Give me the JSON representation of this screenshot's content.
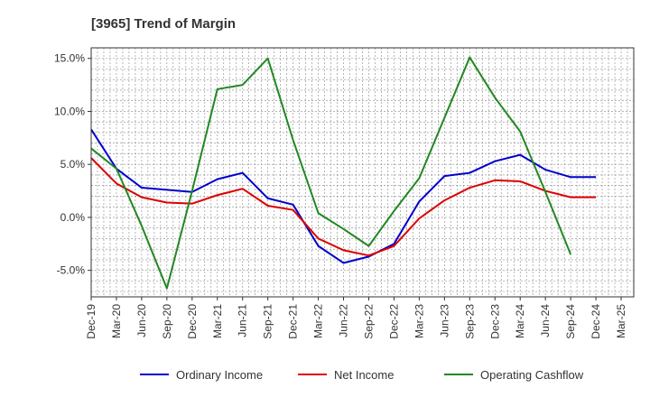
{
  "chart_data": {
    "type": "line",
    "title": "[3965]  Trend of Margin",
    "xlabel": "",
    "ylabel": "",
    "categories": [
      "Dec-19",
      "Mar-20",
      "Jun-20",
      "Sep-20",
      "Dec-20",
      "Mar-21",
      "Jun-21",
      "Sep-21",
      "Dec-21",
      "Mar-22",
      "Jun-22",
      "Sep-22",
      "Dec-22",
      "Mar-23",
      "Jun-23",
      "Sep-23",
      "Dec-23",
      "Mar-24",
      "Jun-24",
      "Sep-24",
      "Dec-24",
      "Mar-25"
    ],
    "ylim": [
      -7.5,
      16.0
    ],
    "yticks": [
      15.0,
      10.0,
      5.0,
      0.0,
      -5.0
    ],
    "ytick_labels": [
      "15.0%",
      "10.0%",
      "5.0%",
      "0.0%",
      "-5.0%"
    ],
    "grid": true,
    "legend_position": "bottom",
    "series": [
      {
        "name": "Ordinary Income",
        "color": "#0000cc",
        "values": [
          8.3,
          4.6,
          2.8,
          2.6,
          2.4,
          3.6,
          4.2,
          1.8,
          1.2,
          -2.7,
          -4.3,
          -3.7,
          -2.5,
          1.5,
          3.9,
          4.2,
          5.3,
          5.9,
          4.5,
          3.8,
          3.8,
          null
        ]
      },
      {
        "name": "Net Income",
        "color": "#dd0000",
        "values": [
          5.6,
          3.2,
          1.9,
          1.4,
          1.3,
          2.1,
          2.7,
          1.1,
          0.7,
          -2.0,
          -3.1,
          -3.6,
          -2.7,
          -0.1,
          1.6,
          2.8,
          3.5,
          3.4,
          2.5,
          1.9,
          1.9,
          null
        ]
      },
      {
        "name": "Operating Cashflow",
        "color": "#228822",
        "values": [
          6.5,
          4.6,
          -0.8,
          -6.7,
          2.5,
          12.1,
          12.5,
          15.0,
          7.3,
          0.4,
          -1.1,
          -2.7,
          0.6,
          3.7,
          9.4,
          15.1,
          11.3,
          8.1,
          2.4,
          -3.5,
          null,
          null
        ]
      }
    ]
  }
}
